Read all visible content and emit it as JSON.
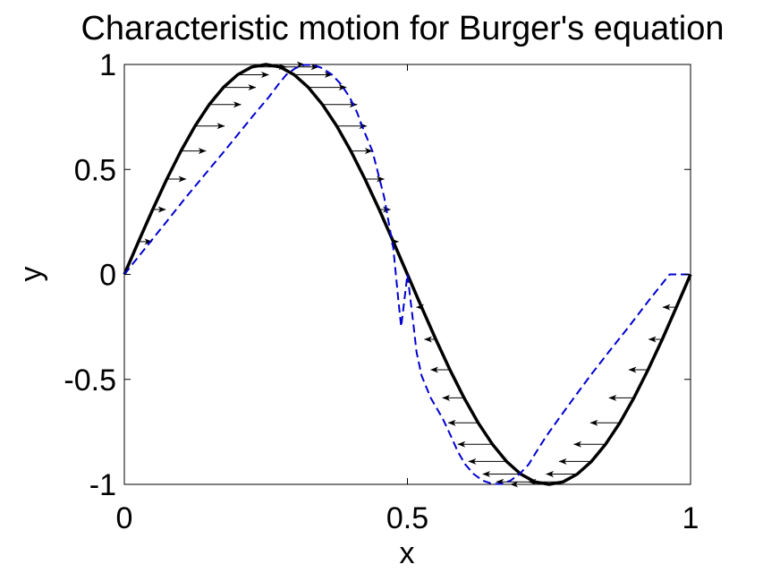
{
  "chart_data": {
    "type": "line",
    "title": "Characteristic motion for Burger's equation",
    "xlabel": "x",
    "ylabel": "y",
    "xlim": [
      0,
      1
    ],
    "ylim": [
      -1,
      1
    ],
    "grid": false,
    "x_ticks": [
      {
        "value": 0,
        "label": "0"
      },
      {
        "value": 0.5,
        "label": "0.5"
      },
      {
        "value": 1,
        "label": "1"
      }
    ],
    "y_ticks": [
      {
        "value": -1,
        "label": "-1"
      },
      {
        "value": -0.5,
        "label": "-0.5"
      },
      {
        "value": 0,
        "label": "0"
      },
      {
        "value": 0.5,
        "label": "0.5"
      },
      {
        "value": 1,
        "label": "1"
      }
    ],
    "series": [
      {
        "style": "solid",
        "color": "#000000",
        "x": [
          0,
          0.025,
          0.05,
          0.075,
          0.1,
          0.125,
          0.15,
          0.175,
          0.2,
          0.225,
          0.25,
          0.275,
          0.3,
          0.325,
          0.35,
          0.375,
          0.4,
          0.425,
          0.45,
          0.475,
          0.5,
          0.525,
          0.55,
          0.575,
          0.6,
          0.625,
          0.65,
          0.675,
          0.7,
          0.725,
          0.75,
          0.775,
          0.8,
          0.825,
          0.85,
          0.875,
          0.9,
          0.925,
          0.95,
          0.975,
          1
        ],
        "y": [
          0,
          0.156,
          0.309,
          0.454,
          0.588,
          0.707,
          0.809,
          0.891,
          0.951,
          0.988,
          1,
          0.988,
          0.951,
          0.891,
          0.809,
          0.707,
          0.588,
          0.454,
          0.309,
          0.156,
          0,
          -0.156,
          -0.309,
          -0.454,
          -0.588,
          -0.707,
          -0.809,
          -0.891,
          -0.951,
          -0.988,
          -1,
          -0.988,
          -0.951,
          -0.891,
          -0.809,
          -0.707,
          -0.588,
          -0.454,
          -0.309,
          -0.156,
          0
        ]
      },
      {
        "style": "dashed",
        "color": "#0000d0",
        "x": [
          0,
          0.037,
          0.074,
          0.109,
          0.144,
          0.177,
          0.206,
          0.232,
          0.255,
          0.272,
          0.286,
          0.302,
          0.318,
          0.334,
          0.35,
          0.367,
          0.383,
          0.398,
          0.411,
          0.423,
          0.438,
          0.459,
          0.475,
          0.484,
          0.489,
          0.5,
          0.511,
          0.516,
          0.525,
          0.541,
          0.562,
          0.577,
          0.589,
          0.602,
          0.617,
          0.633,
          0.65,
          0.666,
          0.682,
          0.698,
          0.714,
          0.728,
          0.745,
          0.768,
          0.794,
          0.823,
          0.856,
          0.891,
          0.926,
          0.963,
          1
        ],
        "y": [
          0,
          0.125,
          0.249,
          0.368,
          0.482,
          0.588,
          0.685,
          0.771,
          0.844,
          0.905,
          0.951,
          0.982,
          0.998,
          0.998,
          0.982,
          0.951,
          0.905,
          0.844,
          0.771,
          0.685,
          0.588,
          0.368,
          0.125,
          -0.125,
          -0.249,
          0,
          -0.249,
          -0.368,
          -0.482,
          -0.588,
          -0.685,
          -0.771,
          -0.844,
          -0.905,
          -0.951,
          -0.982,
          -0.998,
          -0.998,
          -0.982,
          -0.951,
          -0.905,
          -0.844,
          -0.771,
          -0.685,
          -0.588,
          -0.482,
          -0.368,
          -0.249,
          -0.125,
          0,
          0
        ]
      }
    ],
    "arrows": [
      {
        "x0": 0.025,
        "y0": 0.156,
        "x1": 0.049
      },
      {
        "x0": 0.05,
        "y0": 0.309,
        "x1": 0.073
      },
      {
        "x0": 0.075,
        "y0": 0.454,
        "x1": 0.109
      },
      {
        "x0": 0.1,
        "y0": 0.588,
        "x1": 0.144
      },
      {
        "x0": 0.125,
        "y0": 0.707,
        "x1": 0.177
      },
      {
        "x0": 0.15,
        "y0": 0.809,
        "x1": 0.206
      },
      {
        "x0": 0.175,
        "y0": 0.891,
        "x1": 0.232
      },
      {
        "x0": 0.2,
        "y0": 0.951,
        "x1": 0.255
      },
      {
        "x0": 0.225,
        "y0": 0.988,
        "x1": 0.286
      },
      {
        "x0": 0.25,
        "y0": 1,
        "x1": 0.318
      },
      {
        "x0": 0.275,
        "y0": 0.988,
        "x1": 0.343
      },
      {
        "x0": 0.3,
        "y0": 0.951,
        "x1": 0.367
      },
      {
        "x0": 0.325,
        "y0": 0.891,
        "x1": 0.392
      },
      {
        "x0": 0.35,
        "y0": 0.809,
        "x1": 0.411
      },
      {
        "x0": 0.375,
        "y0": 0.707,
        "x1": 0.428
      },
      {
        "x0": 0.4,
        "y0": 0.588,
        "x1": 0.438
      },
      {
        "x0": 0.425,
        "y0": 0.454,
        "x1": 0.459
      },
      {
        "x0": 0.45,
        "y0": 0.309,
        "x1": 0.47
      },
      {
        "x0": 0.475,
        "y0": 0.156,
        "x1": 0.484
      },
      {
        "x0": 0.525,
        "y0": -0.156,
        "x1": 0.516
      },
      {
        "x0": 0.55,
        "y0": -0.309,
        "x1": 0.53
      },
      {
        "x0": 0.575,
        "y0": -0.454,
        "x1": 0.541
      },
      {
        "x0": 0.6,
        "y0": -0.588,
        "x1": 0.562
      },
      {
        "x0": 0.625,
        "y0": -0.707,
        "x1": 0.572
      },
      {
        "x0": 0.65,
        "y0": -0.809,
        "x1": 0.589
      },
      {
        "x0": 0.675,
        "y0": -0.891,
        "x1": 0.608
      },
      {
        "x0": 0.7,
        "y0": -0.951,
        "x1": 0.633
      },
      {
        "x0": 0.725,
        "y0": -0.988,
        "x1": 0.657
      },
      {
        "x0": 0.75,
        "y0": -1,
        "x1": 0.682
      },
      {
        "x0": 0.775,
        "y0": -0.988,
        "x1": 0.714
      },
      {
        "x0": 0.8,
        "y0": -0.951,
        "x1": 0.745
      },
      {
        "x0": 0.825,
        "y0": -0.891,
        "x1": 0.768
      },
      {
        "x0": 0.85,
        "y0": -0.809,
        "x1": 0.794
      },
      {
        "x0": 0.875,
        "y0": -0.707,
        "x1": 0.823
      },
      {
        "x0": 0.9,
        "y0": -0.588,
        "x1": 0.856
      },
      {
        "x0": 0.925,
        "y0": -0.454,
        "x1": 0.891
      },
      {
        "x0": 0.95,
        "y0": -0.309,
        "x1": 0.926
      },
      {
        "x0": 0.975,
        "y0": -0.156,
        "x1": 0.951
      }
    ]
  }
}
